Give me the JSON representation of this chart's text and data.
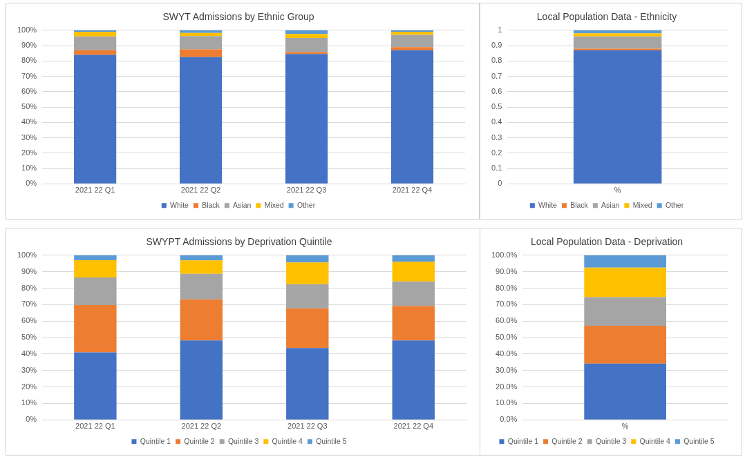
{
  "chart_data": [
    {
      "type": "bar",
      "title": "SWYT Admissions by Ethnic Group",
      "categories": [
        "2021 22 Q1",
        "2021 22 Q2",
        "2021 22 Q3",
        "2021 22 Q4"
      ],
      "stacked": true,
      "grid": "y",
      "legend": "bottom",
      "ylim": [
        0,
        100
      ],
      "yticks": [
        {
          "value": 0,
          "label": "0%"
        },
        {
          "value": 10,
          "label": "10%"
        },
        {
          "value": 20,
          "label": "20%"
        },
        {
          "value": 30,
          "label": "30%"
        },
        {
          "value": 40,
          "label": "40%"
        },
        {
          "value": 50,
          "label": "50%"
        },
        {
          "value": 60,
          "label": "60%"
        },
        {
          "value": 70,
          "label": "70%"
        },
        {
          "value": 80,
          "label": "80%"
        },
        {
          "value": 90,
          "label": "90%"
        },
        {
          "value": 100,
          "label": "100%"
        }
      ],
      "series": [
        {
          "name": "White",
          "color": "#4472c4",
          "values": [
            84,
            82.5,
            84.5,
            87
          ]
        },
        {
          "name": "Black",
          "color": "#ed7d31",
          "values": [
            3,
            5,
            1.2,
            2
          ]
        },
        {
          "name": "Asian",
          "color": "#a5a5a5",
          "values": [
            9,
            8.7,
            9.3,
            8
          ]
        },
        {
          "name": "Mixed",
          "color": "#ffc000",
          "values": [
            3,
            2,
            2.5,
            2
          ]
        },
        {
          "name": "Other",
          "color": "#5b9bd5",
          "values": [
            1,
            1.8,
            2.5,
            1
          ]
        }
      ]
    },
    {
      "type": "bar",
      "title": "Local Population Data - Ethnicity",
      "categories": [
        "%"
      ],
      "stacked": true,
      "grid": "y",
      "legend": "bottom",
      "ylim": [
        0,
        1
      ],
      "yticks": [
        0,
        0.1,
        0.2,
        0.3,
        0.4,
        0.5,
        0.6,
        0.7,
        0.8,
        0.9,
        1
      ],
      "series": [
        {
          "name": "White",
          "color": "#4472c4",
          "values": [
            0.87
          ]
        },
        {
          "name": "Black",
          "color": "#ed7d31",
          "values": [
            0.01
          ]
        },
        {
          "name": "Asian",
          "color": "#a5a5a5",
          "values": [
            0.08
          ]
        },
        {
          "name": "Mixed",
          "color": "#ffc000",
          "values": [
            0.02
          ]
        },
        {
          "name": "Other",
          "color": "#5b9bd5",
          "values": [
            0.02
          ]
        }
      ]
    },
    {
      "type": "bar",
      "title": "SWYPT Admissions by Deprivation Quintile",
      "categories": [
        "2021 22 Q1",
        "2021 22 Q2",
        "2021 22 Q3",
        "2021 22 Q4"
      ],
      "stacked": true,
      "grid": "y",
      "legend": "bottom",
      "ylim": [
        0,
        100
      ],
      "yticks": [
        {
          "value": 0,
          "label": "0%"
        },
        {
          "value": 10,
          "label": "10%"
        },
        {
          "value": 20,
          "label": "20%"
        },
        {
          "value": 30,
          "label": "30%"
        },
        {
          "value": 40,
          "label": "40%"
        },
        {
          "value": 50,
          "label": "50%"
        },
        {
          "value": 60,
          "label": "60%"
        },
        {
          "value": 70,
          "label": "70%"
        },
        {
          "value": 80,
          "label": "80%"
        },
        {
          "value": 90,
          "label": "90%"
        },
        {
          "value": 100,
          "label": "100%"
        }
      ],
      "series": [
        {
          "name": "Quintile 1",
          "color": "#4472c4",
          "values": [
            41,
            48.2,
            43.6,
            48.2
          ]
        },
        {
          "name": "Quintile 2",
          "color": "#ed7d31",
          "values": [
            28.7,
            25,
            24.1,
            21
          ]
        },
        {
          "name": "Quintile 3",
          "color": "#a5a5a5",
          "values": [
            16.8,
            15.5,
            14.7,
            14.9
          ]
        },
        {
          "name": "Quintile 4",
          "color": "#ffc000",
          "values": [
            10.5,
            8.2,
            13.2,
            11.9
          ]
        },
        {
          "name": "Quintile 5",
          "color": "#5b9bd5",
          "values": [
            3,
            3.1,
            4.4,
            4
          ]
        }
      ]
    },
    {
      "type": "bar",
      "title": "Local Population Data - Deprivation",
      "categories": [
        "%"
      ],
      "stacked": true,
      "grid": "y",
      "legend": "bottom",
      "ylim": [
        0,
        100
      ],
      "yticks": [
        {
          "value": 0,
          "label": "0.0%"
        },
        {
          "value": 10,
          "label": "10.0%"
        },
        {
          "value": 20,
          "label": "20.0%"
        },
        {
          "value": 30,
          "label": "30.0%"
        },
        {
          "value": 40,
          "label": "40.0%"
        },
        {
          "value": 50,
          "label": "50.0%"
        },
        {
          "value": 60,
          "label": "60.0%"
        },
        {
          "value": 70,
          "label": "70.0%"
        },
        {
          "value": 80,
          "label": "80.0%"
        },
        {
          "value": 90,
          "label": "90.0%"
        },
        {
          "value": 100,
          "label": "100.0%"
        }
      ],
      "series": [
        {
          "name": "Quintile 1",
          "color": "#4472c4",
          "values": [
            34.2
          ]
        },
        {
          "name": "Quintile 2",
          "color": "#ed7d31",
          "values": [
            22.9
          ]
        },
        {
          "name": "Quintile 3",
          "color": "#a5a5a5",
          "values": [
            17.4
          ]
        },
        {
          "name": "Quintile 4",
          "color": "#ffc000",
          "values": [
            18
          ]
        },
        {
          "name": "Quintile 5",
          "color": "#5b9bd5",
          "values": [
            7.5
          ]
        }
      ]
    }
  ]
}
